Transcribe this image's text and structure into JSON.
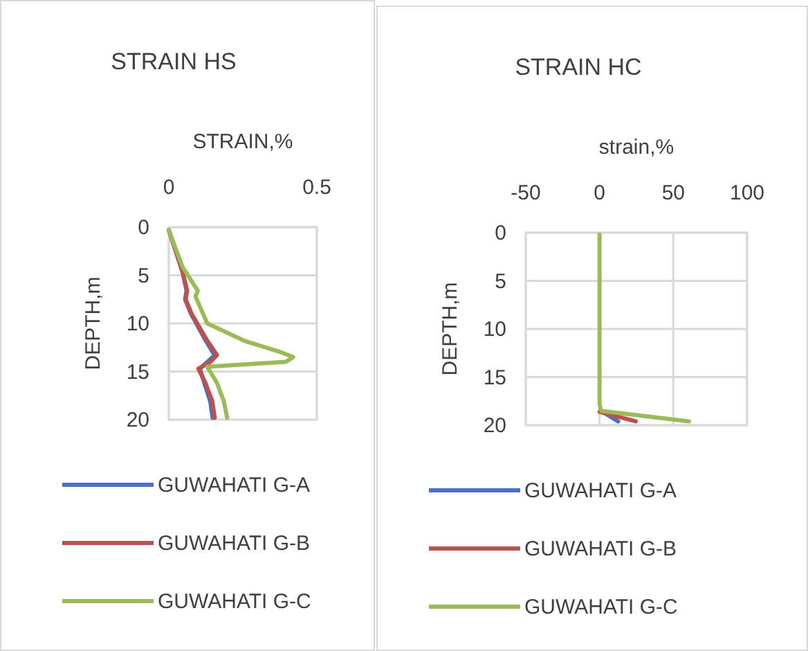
{
  "chart_data": [
    {
      "type": "line",
      "title": "STRAIN HS",
      "xlabel": "STRAIN,%",
      "ylabel": "DEPTH,m",
      "xlim": [
        0,
        0.5
      ],
      "xticks": [
        0,
        0.5
      ],
      "ylim": [
        20,
        0
      ],
      "yticks": [
        0,
        5,
        10,
        15,
        20
      ],
      "grid": true,
      "legend": "bottom",
      "marker": "none",
      "series": [
        {
          "name": "GUWAHATI G-A",
          "color": "#4472c4",
          "x": [
            0,
            0.046,
            0.06,
            0.055,
            0.075,
            0.125,
            0.155,
            0.13,
            0.105,
            0.12,
            0.14,
            0.148
          ],
          "values": [
            0.3,
            4.6,
            6.6,
            7.5,
            9,
            11.8,
            13.3,
            14,
            14.7,
            16.2,
            18.1,
            19.8
          ]
        },
        {
          "name": "GUWAHATI G-B",
          "color": "#c0504d",
          "x": [
            0,
            0.046,
            0.062,
            0.057,
            0.077,
            0.13,
            0.163,
            0.14,
            0.1,
            0.124,
            0.147,
            0.155
          ],
          "values": [
            0.3,
            4.6,
            6.6,
            7.5,
            9,
            11.8,
            13.3,
            14,
            14.7,
            16.2,
            18.1,
            19.8
          ]
        },
        {
          "name": "GUWAHATI G-C",
          "color": "#9bbb59",
          "x": [
            0,
            0.046,
            0.085,
            0.098,
            0.09,
            0.13,
            0.255,
            0.38,
            0.42,
            0.395,
            0.13,
            0.163,
            0.186,
            0.197
          ],
          "values": [
            0.3,
            4.1,
            6,
            6.6,
            7.2,
            10,
            11.8,
            13,
            13.5,
            14,
            14.5,
            16.2,
            18.1,
            19.8
          ]
        }
      ]
    },
    {
      "type": "line",
      "title": "STRAIN HC",
      "xlabel": "strain,%",
      "ylabel": "DEPTH,m",
      "xlim": [
        -50,
        100
      ],
      "xticks": [
        -50,
        0,
        50,
        100
      ],
      "ylim": [
        20,
        0
      ],
      "yticks": [
        0,
        5,
        10,
        15,
        20
      ],
      "grid": true,
      "legend": "bottom",
      "marker": "none",
      "series": [
        {
          "name": "GUWAHATI G-A",
          "color": "#4472c4",
          "x": [
            1,
            12.6
          ],
          "values": [
            18.5,
            19.6
          ]
        },
        {
          "name": "GUWAHATI G-B",
          "color": "#c0504d",
          "x": [
            0,
            24.5
          ],
          "values": [
            18.6,
            19.6
          ]
        },
        {
          "name": "GUWAHATI G-C",
          "color": "#9bbb59",
          "x": [
            0,
            0,
            1,
            60.7
          ],
          "values": [
            0.2,
            17.8,
            18.5,
            19.6
          ]
        }
      ]
    }
  ]
}
